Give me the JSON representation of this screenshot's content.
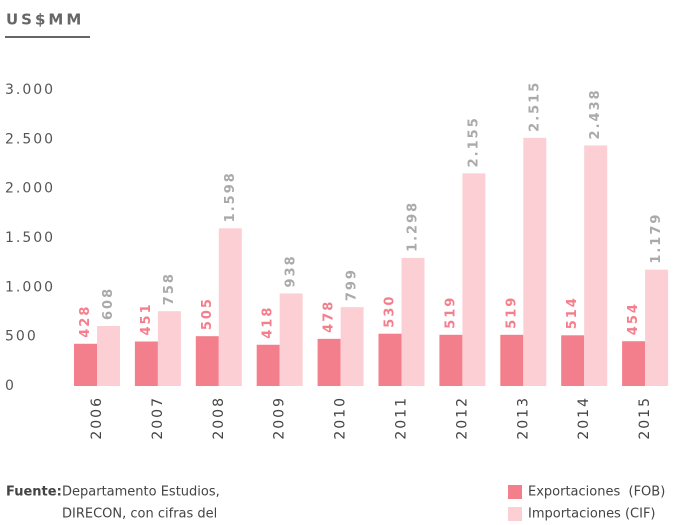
{
  "chart_data": {
    "type": "bar",
    "title": "US$MM",
    "categories": [
      "2006",
      "2007",
      "2008",
      "2009",
      "2010",
      "2011",
      "2012",
      "2013",
      "2014",
      "2015"
    ],
    "series": [
      {
        "name": "Exportaciones  (FOB)",
        "color": "#f47f8c",
        "values": [
          428,
          451,
          505,
          418,
          478,
          530,
          519,
          519,
          514,
          454
        ]
      },
      {
        "name": "Importaciones (CIF)",
        "color": "#fccfd4",
        "values": [
          608,
          758,
          1598,
          938,
          799,
          1298,
          2155,
          2515,
          2438,
          1179
        ],
        "value_labels": [
          "608",
          "758",
          "1.598",
          "938",
          "799",
          "1.298",
          "2.155",
          "2.515",
          "2.438",
          "1.179"
        ]
      }
    ],
    "ylim": [
      0,
      3000
    ],
    "yticks": [
      0,
      500,
      {
        "value": 1000,
        "label": "1.000"
      },
      {
        "value": 1500,
        "label": "1.500"
      },
      {
        "value": 2000,
        "label": "2.000"
      },
      {
        "value": 2500,
        "label": "2.500"
      },
      {
        "value": 3000,
        "label": "3.000"
      }
    ],
    "source_label": "Fuente:",
    "source": [
      "Departamento Estudios,",
      "DIRECON, con cifras del"
    ]
  }
}
